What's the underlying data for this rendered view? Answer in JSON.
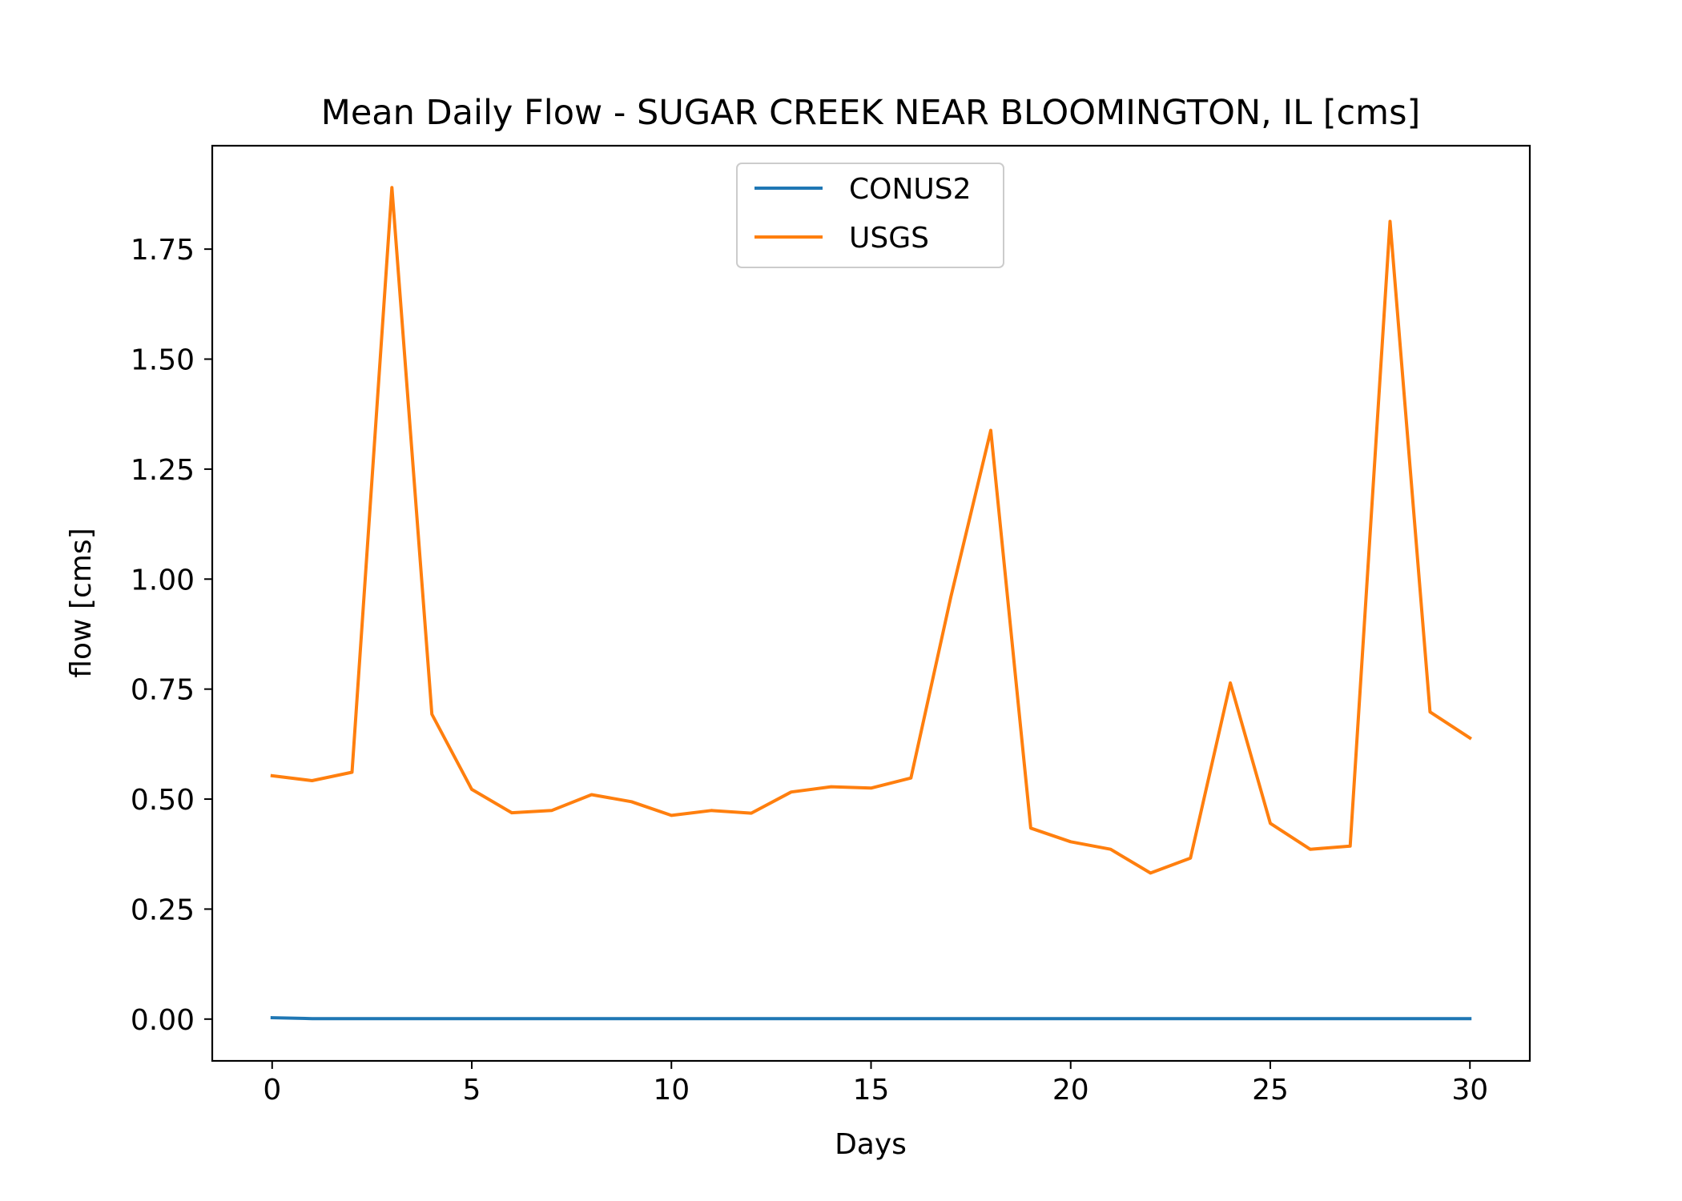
{
  "chart_data": {
    "type": "line",
    "title": "Mean Daily Flow - SUGAR CREEK NEAR BLOOMINGTON, IL [cms]",
    "xlabel": "Days",
    "ylabel": "flow [cms]",
    "xlim": [
      -1.5,
      31.5
    ],
    "ylim": [
      -0.095,
      1.985
    ],
    "xticks": [
      0,
      5,
      10,
      15,
      20,
      25,
      30
    ],
    "xtick_labels": [
      "0",
      "5",
      "10",
      "15",
      "20",
      "25",
      "30"
    ],
    "yticks": [
      0.0,
      0.25,
      0.5,
      0.75,
      1.0,
      1.25,
      1.5,
      1.75
    ],
    "ytick_labels": [
      "0.00",
      "0.25",
      "0.50",
      "0.75",
      "1.00",
      "1.25",
      "1.50",
      "1.75"
    ],
    "grid": false,
    "legend_position": "upper center",
    "x": [
      0,
      1,
      2,
      3,
      4,
      5,
      6,
      7,
      8,
      9,
      10,
      11,
      12,
      13,
      14,
      15,
      16,
      17,
      18,
      19,
      20,
      21,
      22,
      23,
      24,
      25,
      26,
      27,
      28,
      29,
      30
    ],
    "series": [
      {
        "name": "CONUS2",
        "color": "#1f77b4",
        "values": [
          0.003,
          0.001,
          0.001,
          0.001,
          0.001,
          0.001,
          0.001,
          0.001,
          0.001,
          0.001,
          0.001,
          0.001,
          0.001,
          0.001,
          0.001,
          0.001,
          0.001,
          0.001,
          0.001,
          0.001,
          0.001,
          0.001,
          0.001,
          0.001,
          0.001,
          0.001,
          0.001,
          0.001,
          0.001,
          0.001,
          0.001
        ]
      },
      {
        "name": "USGS",
        "color": "#ff7f0e",
        "values": [
          0.553,
          0.542,
          0.561,
          1.89,
          0.693,
          0.522,
          0.469,
          0.474,
          0.51,
          0.494,
          0.463,
          0.474,
          0.468,
          0.516,
          0.528,
          0.525,
          0.548,
          0.96,
          1.338,
          0.434,
          0.403,
          0.386,
          0.332,
          0.366,
          0.764,
          0.445,
          0.386,
          0.393,
          1.813,
          0.698,
          0.639
        ]
      }
    ]
  }
}
